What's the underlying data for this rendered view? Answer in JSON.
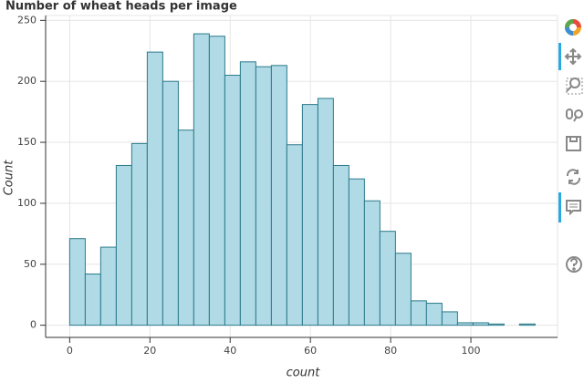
{
  "chart_data": {
    "type": "histogram",
    "title": "Number of wheat heads per image",
    "x_label": "count",
    "y_label": "Count",
    "bins": [
      0,
      3.87,
      7.73,
      11.6,
      15.47,
      19.33,
      23.2,
      27.07,
      30.93,
      34.8,
      38.67,
      42.53,
      46.4,
      50.27,
      54.13,
      58,
      61.87,
      65.73,
      69.6,
      73.47,
      77.33,
      81.2,
      85.07,
      88.93,
      92.8,
      96.67,
      100.53,
      104.4,
      108.27,
      112.13,
      116
    ],
    "values": [
      71,
      42,
      64,
      131,
      149,
      224,
      200,
      160,
      239,
      237,
      205,
      216,
      212,
      213,
      148,
      181,
      186,
      131,
      120,
      102,
      77,
      59,
      20,
      18,
      11,
      2,
      2,
      1,
      0,
      1
    ],
    "color": "#add8e6",
    "edge_color": "#2b7a8a",
    "xlim": [
      -6,
      121.6
    ],
    "ylim": [
      -10,
      254
    ],
    "xticks": [
      0,
      20,
      40,
      60,
      80,
      100
    ],
    "yticks": [
      0,
      50,
      100,
      150,
      200,
      250
    ],
    "grid": true
  }
}
